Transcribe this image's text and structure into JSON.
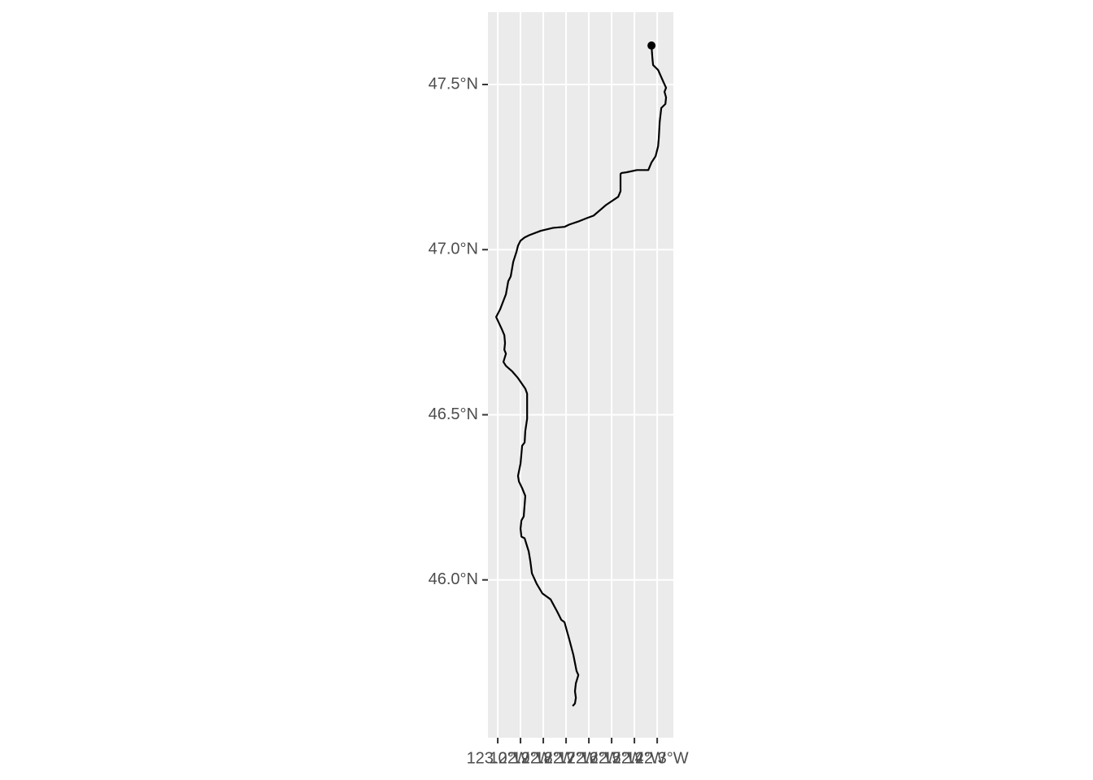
{
  "chart_data": {
    "type": "line",
    "color": "#000000",
    "grid": true,
    "x": [
      -122.325,
      -122.321,
      -122.318,
      -122.296,
      -122.271,
      -122.261,
      -122.268,
      -122.261,
      -122.264,
      -122.282,
      -122.289,
      -122.293,
      -122.296,
      -122.307,
      -122.325,
      -122.339,
      -122.389,
      -122.436,
      -122.457,
      -122.461,
      -122.461,
      -122.471,
      -122.525,
      -122.579,
      -122.607,
      -122.643,
      -122.686,
      -122.707,
      -122.757,
      -122.811,
      -122.861,
      -122.882,
      -122.9,
      -122.911,
      -122.918,
      -122.932,
      -122.943,
      -122.954,
      -122.964,
      -122.989,
      -123.007,
      -122.982,
      -122.971,
      -122.968,
      -122.971,
      -122.964,
      -122.975,
      -122.964,
      -122.936,
      -122.911,
      -122.879,
      -122.871,
      -122.871,
      -122.879,
      -122.882,
      -122.893,
      -122.896,
      -122.9,
      -122.911,
      -122.907,
      -122.893,
      -122.879,
      -122.886,
      -122.896,
      -122.9,
      -122.896,
      -122.882,
      -122.864,
      -122.857,
      -122.85,
      -122.829,
      -122.804,
      -122.768,
      -122.739,
      -122.721,
      -122.707,
      -122.686,
      -122.668,
      -122.654,
      -122.646,
      -122.657,
      -122.661,
      -122.657,
      -122.661,
      -122.671
    ],
    "y": [
      47.618,
      47.579,
      47.559,
      47.544,
      47.505,
      47.49,
      47.478,
      47.461,
      47.441,
      47.429,
      47.387,
      47.337,
      47.313,
      47.283,
      47.264,
      47.241,
      47.241,
      47.234,
      47.232,
      47.229,
      47.177,
      47.16,
      47.135,
      47.103,
      47.096,
      47.086,
      47.076,
      47.069,
      47.066,
      47.057,
      47.044,
      47.037,
      47.027,
      47.012,
      46.993,
      46.963,
      46.919,
      46.904,
      46.865,
      46.82,
      46.796,
      46.759,
      46.741,
      46.717,
      46.697,
      46.685,
      46.66,
      46.648,
      46.631,
      46.611,
      46.579,
      46.564,
      46.488,
      46.451,
      46.416,
      46.406,
      46.382,
      46.352,
      46.315,
      46.298,
      46.278,
      46.254,
      46.192,
      46.18,
      46.155,
      46.131,
      46.126,
      46.086,
      46.057,
      46.02,
      45.988,
      45.959,
      45.941,
      45.904,
      45.879,
      45.872,
      45.82,
      45.773,
      45.724,
      45.712,
      45.687,
      45.663,
      45.643,
      45.626,
      45.618
    ],
    "point": {
      "x": -122.325,
      "y": 47.618
    },
    "xlim": [
      -123.043,
      -122.229
    ],
    "ylim": [
      45.522,
      47.719
    ],
    "xticks": [
      {
        "value": -123.0,
        "label": "123.0°W"
      },
      {
        "value": -122.9,
        "label": "122.9°W"
      },
      {
        "value": -122.8,
        "label": "122.8°W"
      },
      {
        "value": -122.7,
        "label": "122.7°W"
      },
      {
        "value": -122.6,
        "label": "122.6°W"
      },
      {
        "value": -122.5,
        "label": "122.5°W"
      },
      {
        "value": -122.4,
        "label": "122.4°W"
      },
      {
        "value": -122.3,
        "label": "122.3°W"
      }
    ],
    "yticks": [
      {
        "value": 46.0,
        "label": "46.0°N"
      },
      {
        "value": 46.5,
        "label": "46.5°N"
      },
      {
        "value": 47.0,
        "label": "47.0°N"
      },
      {
        "value": 47.5,
        "label": "47.5°N"
      }
    ]
  }
}
